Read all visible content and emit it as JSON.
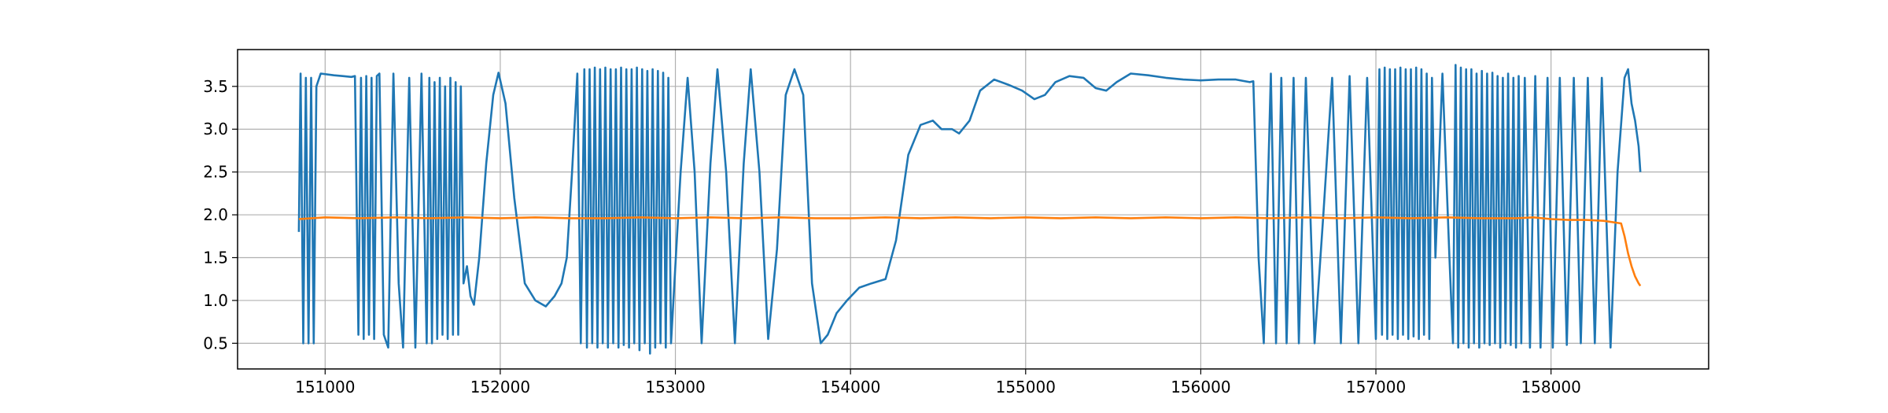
{
  "chart_data": {
    "type": "line",
    "title": "",
    "xlabel": "",
    "ylabel": "",
    "xlim": [
      150500,
      158900
    ],
    "ylim": [
      0.2,
      3.93
    ],
    "grid": true,
    "x_ticks": [
      151000,
      152000,
      153000,
      154000,
      155000,
      156000,
      157000,
      158000
    ],
    "y_ticks": [
      0.5,
      1.0,
      1.5,
      2.0,
      2.5,
      3.0,
      3.5
    ],
    "x_tick_labels": [
      "151000",
      "152000",
      "153000",
      "154000",
      "155000",
      "156000",
      "157000",
      "158000"
    ],
    "y_tick_labels": [
      "0.5",
      "1.0",
      "1.5",
      "2.0",
      "2.5",
      "3.0",
      "3.5"
    ],
    "series": [
      {
        "color": "#1f77b4",
        "points": [
          [
            150850,
            1.8
          ],
          [
            150860,
            3.65
          ],
          [
            150875,
            0.5
          ],
          [
            150890,
            3.6
          ],
          [
            150905,
            0.5
          ],
          [
            150920,
            3.6
          ],
          [
            150935,
            0.5
          ],
          [
            150950,
            3.5
          ],
          [
            150975,
            3.65
          ],
          [
            151050,
            3.63
          ],
          [
            151100,
            3.62
          ],
          [
            151150,
            3.61
          ],
          [
            151170,
            3.62
          ],
          [
            151190,
            0.6
          ],
          [
            151205,
            3.6
          ],
          [
            151220,
            0.55
          ],
          [
            151235,
            3.62
          ],
          [
            151250,
            0.6
          ],
          [
            151265,
            3.6
          ],
          [
            151280,
            0.55
          ],
          [
            151295,
            3.62
          ],
          [
            151310,
            3.65
          ],
          [
            151335,
            0.6
          ],
          [
            151360,
            0.45
          ],
          [
            151390,
            3.65
          ],
          [
            151420,
            1.2
          ],
          [
            151445,
            0.45
          ],
          [
            151480,
            3.6
          ],
          [
            151515,
            0.45
          ],
          [
            151550,
            3.65
          ],
          [
            151580,
            0.5
          ],
          [
            151595,
            3.6
          ],
          [
            151610,
            0.5
          ],
          [
            151625,
            3.55
          ],
          [
            151640,
            0.55
          ],
          [
            151655,
            3.6
          ],
          [
            151670,
            0.6
          ],
          [
            151685,
            3.5
          ],
          [
            151700,
            0.55
          ],
          [
            151715,
            3.6
          ],
          [
            151730,
            0.6
          ],
          [
            151745,
            3.55
          ],
          [
            151760,
            0.6
          ],
          [
            151775,
            3.5
          ],
          [
            151790,
            1.2
          ],
          [
            151810,
            1.4
          ],
          [
            151830,
            1.05
          ],
          [
            151850,
            0.95
          ],
          [
            151880,
            1.5
          ],
          [
            151920,
            2.6
          ],
          [
            151960,
            3.4
          ],
          [
            151990,
            3.66
          ],
          [
            152030,
            3.3
          ],
          [
            152080,
            2.2
          ],
          [
            152140,
            1.2
          ],
          [
            152200,
            1.0
          ],
          [
            152260,
            0.93
          ],
          [
            152310,
            1.05
          ],
          [
            152350,
            1.2
          ],
          [
            152380,
            1.5
          ],
          [
            152410,
            2.5
          ],
          [
            152440,
            3.65
          ],
          [
            152460,
            0.5
          ],
          [
            152480,
            3.7
          ],
          [
            152495,
            0.45
          ],
          [
            152510,
            3.7
          ],
          [
            152525,
            0.5
          ],
          [
            152540,
            3.72
          ],
          [
            152555,
            0.45
          ],
          [
            152570,
            3.7
          ],
          [
            152585,
            0.5
          ],
          [
            152600,
            3.72
          ],
          [
            152615,
            0.45
          ],
          [
            152630,
            3.7
          ],
          [
            152645,
            0.5
          ],
          [
            152660,
            3.7
          ],
          [
            152675,
            0.45
          ],
          [
            152690,
            3.72
          ],
          [
            152705,
            0.48
          ],
          [
            152720,
            3.7
          ],
          [
            152735,
            0.45
          ],
          [
            152750,
            3.7
          ],
          [
            152765,
            0.5
          ],
          [
            152780,
            3.72
          ],
          [
            152795,
            0.42
          ],
          [
            152810,
            3.7
          ],
          [
            152825,
            0.5
          ],
          [
            152840,
            3.68
          ],
          [
            152855,
            0.38
          ],
          [
            152870,
            3.7
          ],
          [
            152885,
            0.45
          ],
          [
            152900,
            3.68
          ],
          [
            152915,
            0.5
          ],
          [
            152930,
            3.66
          ],
          [
            152945,
            0.45
          ],
          [
            152960,
            3.6
          ],
          [
            152975,
            0.5
          ],
          [
            153030,
            2.5
          ],
          [
            153070,
            3.6
          ],
          [
            153110,
            2.5
          ],
          [
            153150,
            0.5
          ],
          [
            153200,
            2.6
          ],
          [
            153240,
            3.7
          ],
          [
            153290,
            2.5
          ],
          [
            153340,
            0.5
          ],
          [
            153390,
            2.6
          ],
          [
            153430,
            3.7
          ],
          [
            153480,
            2.5
          ],
          [
            153530,
            0.55
          ],
          [
            153580,
            1.6
          ],
          [
            153630,
            3.4
          ],
          [
            153680,
            3.7
          ],
          [
            153730,
            3.4
          ],
          [
            153780,
            1.2
          ],
          [
            153830,
            0.5
          ],
          [
            153870,
            0.6
          ],
          [
            153920,
            0.85
          ],
          [
            153980,
            1.0
          ],
          [
            154050,
            1.15
          ],
          [
            154120,
            1.2
          ],
          [
            154200,
            1.25
          ],
          [
            154260,
            1.7
          ],
          [
            154330,
            2.7
          ],
          [
            154400,
            3.05
          ],
          [
            154470,
            3.1
          ],
          [
            154520,
            3.0
          ],
          [
            154580,
            3.0
          ],
          [
            154620,
            2.95
          ],
          [
            154680,
            3.1
          ],
          [
            154740,
            3.45
          ],
          [
            154820,
            3.58
          ],
          [
            154900,
            3.52
          ],
          [
            154980,
            3.45
          ],
          [
            155050,
            3.35
          ],
          [
            155110,
            3.4
          ],
          [
            155170,
            3.55
          ],
          [
            155250,
            3.62
          ],
          [
            155330,
            3.6
          ],
          [
            155400,
            3.48
          ],
          [
            155460,
            3.45
          ],
          [
            155520,
            3.55
          ],
          [
            155600,
            3.65
          ],
          [
            155700,
            3.63
          ],
          [
            155800,
            3.6
          ],
          [
            155900,
            3.58
          ],
          [
            156000,
            3.57
          ],
          [
            156100,
            3.58
          ],
          [
            156200,
            3.58
          ],
          [
            156280,
            3.55
          ],
          [
            156300,
            3.56
          ],
          [
            156330,
            1.5
          ],
          [
            156360,
            0.5
          ],
          [
            156400,
            3.65
          ],
          [
            156430,
            0.5
          ],
          [
            156460,
            3.6
          ],
          [
            156490,
            0.5
          ],
          [
            156530,
            3.6
          ],
          [
            156560,
            0.5
          ],
          [
            156600,
            3.6
          ],
          [
            156650,
            0.5
          ],
          [
            156700,
            2.0
          ],
          [
            156750,
            3.6
          ],
          [
            156800,
            0.5
          ],
          [
            156850,
            3.62
          ],
          [
            156900,
            0.5
          ],
          [
            156950,
            3.6
          ],
          [
            157000,
            0.55
          ],
          [
            157020,
            3.7
          ],
          [
            157035,
            0.6
          ],
          [
            157050,
            3.72
          ],
          [
            157065,
            0.55
          ],
          [
            157080,
            3.7
          ],
          [
            157095,
            0.6
          ],
          [
            157110,
            3.7
          ],
          [
            157125,
            0.55
          ],
          [
            157140,
            3.72
          ],
          [
            157155,
            0.6
          ],
          [
            157170,
            3.7
          ],
          [
            157185,
            0.55
          ],
          [
            157200,
            3.7
          ],
          [
            157215,
            0.58
          ],
          [
            157230,
            3.72
          ],
          [
            157245,
            0.55
          ],
          [
            157260,
            3.7
          ],
          [
            157275,
            0.6
          ],
          [
            157290,
            3.65
          ],
          [
            157305,
            0.55
          ],
          [
            157320,
            3.6
          ],
          [
            157340,
            1.5
          ],
          [
            157380,
            3.65
          ],
          [
            157420,
            1.5
          ],
          [
            157440,
            0.5
          ],
          [
            157455,
            3.75
          ],
          [
            157470,
            0.45
          ],
          [
            157485,
            3.72
          ],
          [
            157500,
            0.5
          ],
          [
            157515,
            3.7
          ],
          [
            157530,
            0.45
          ],
          [
            157545,
            3.7
          ],
          [
            157560,
            0.5
          ],
          [
            157575,
            3.65
          ],
          [
            157590,
            0.45
          ],
          [
            157605,
            3.68
          ],
          [
            157620,
            0.5
          ],
          [
            157635,
            3.65
          ],
          [
            157650,
            0.48
          ],
          [
            157665,
            3.66
          ],
          [
            157680,
            0.5
          ],
          [
            157695,
            3.62
          ],
          [
            157710,
            0.45
          ],
          [
            157725,
            3.6
          ],
          [
            157740,
            0.5
          ],
          [
            157755,
            3.65
          ],
          [
            157770,
            0.48
          ],
          [
            157785,
            3.6
          ],
          [
            157800,
            0.45
          ],
          [
            157815,
            3.62
          ],
          [
            157830,
            0.5
          ],
          [
            157850,
            3.6
          ],
          [
            157880,
            0.45
          ],
          [
            157910,
            3.62
          ],
          [
            157940,
            0.45
          ],
          [
            157980,
            3.6
          ],
          [
            158010,
            0.45
          ],
          [
            158050,
            3.6
          ],
          [
            158090,
            0.48
          ],
          [
            158130,
            3.6
          ],
          [
            158170,
            0.5
          ],
          [
            158210,
            3.6
          ],
          [
            158250,
            0.5
          ],
          [
            158290,
            3.6
          ],
          [
            158340,
            0.45
          ],
          [
            158380,
            2.5
          ],
          [
            158420,
            3.6
          ],
          [
            158440,
            3.7
          ],
          [
            158460,
            3.3
          ],
          [
            158480,
            3.1
          ],
          [
            158500,
            2.8
          ],
          [
            158510,
            2.5
          ]
        ]
      },
      {
        "color": "#ff7f0e",
        "points": [
          [
            150850,
            1.95
          ],
          [
            151000,
            1.97
          ],
          [
            151200,
            1.96
          ],
          [
            151400,
            1.97
          ],
          [
            151600,
            1.96
          ],
          [
            151800,
            1.97
          ],
          [
            152000,
            1.96
          ],
          [
            152200,
            1.97
          ],
          [
            152400,
            1.96
          ],
          [
            152600,
            1.96
          ],
          [
            152800,
            1.97
          ],
          [
            153000,
            1.96
          ],
          [
            153200,
            1.97
          ],
          [
            153400,
            1.96
          ],
          [
            153600,
            1.97
          ],
          [
            153800,
            1.96
          ],
          [
            154000,
            1.96
          ],
          [
            154200,
            1.97
          ],
          [
            154400,
            1.96
          ],
          [
            154600,
            1.97
          ],
          [
            154800,
            1.96
          ],
          [
            155000,
            1.97
          ],
          [
            155200,
            1.96
          ],
          [
            155400,
            1.97
          ],
          [
            155600,
            1.96
          ],
          [
            155800,
            1.97
          ],
          [
            156000,
            1.96
          ],
          [
            156200,
            1.97
          ],
          [
            156400,
            1.96
          ],
          [
            156600,
            1.97
          ],
          [
            156800,
            1.96
          ],
          [
            157000,
            1.97
          ],
          [
            157200,
            1.96
          ],
          [
            157400,
            1.97
          ],
          [
            157600,
            1.96
          ],
          [
            157800,
            1.96
          ],
          [
            157900,
            1.97
          ],
          [
            158000,
            1.95
          ],
          [
            158100,
            1.94
          ],
          [
            158200,
            1.94
          ],
          [
            158300,
            1.93
          ],
          [
            158400,
            1.9
          ],
          [
            158420,
            1.75
          ],
          [
            158440,
            1.55
          ],
          [
            158460,
            1.4
          ],
          [
            158480,
            1.28
          ],
          [
            158500,
            1.2
          ],
          [
            158510,
            1.17
          ]
        ]
      }
    ]
  }
}
